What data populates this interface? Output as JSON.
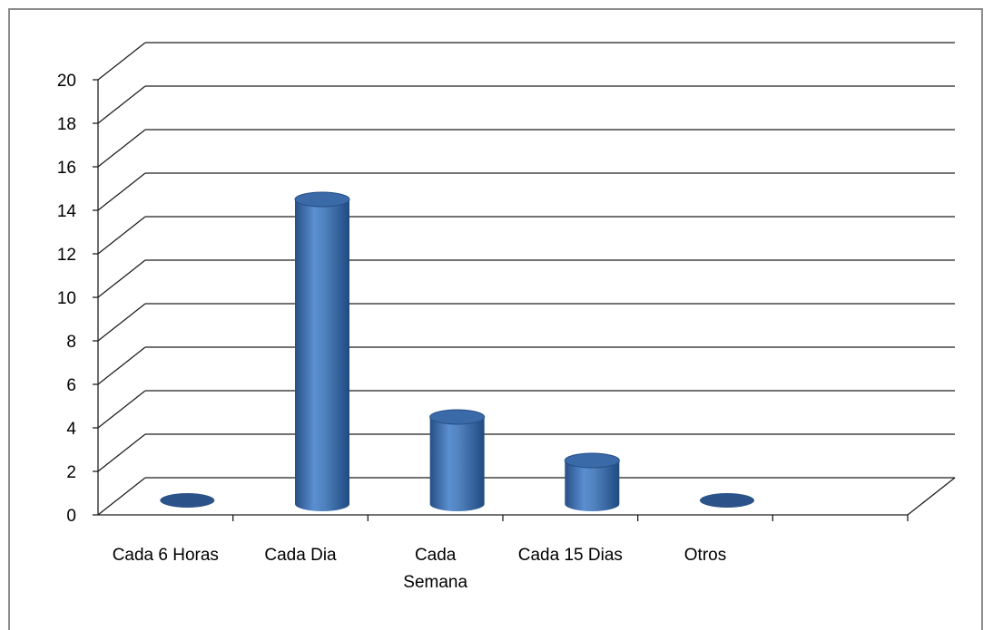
{
  "chart_data": {
    "type": "bar",
    "style": "3d-cylinder",
    "categories": [
      [
        "Cada 6 Horas"
      ],
      [
        "Cada Dia"
      ],
      [
        "Cada",
        "Semana"
      ],
      [
        "Cada 15 Dias"
      ],
      [
        "Otros"
      ]
    ],
    "values": [
      0,
      14,
      4,
      2,
      0
    ],
    "yticks": [
      "0",
      "2",
      "4",
      "6",
      "8",
      "10",
      "12",
      "14",
      "16",
      "18",
      "20"
    ],
    "ylim": [
      0,
      20
    ],
    "grid": true,
    "legend": "none",
    "colors": {
      "bar": "#4f81bd",
      "bar_dark": "#2b5389",
      "bar_top": "#3a6aa8",
      "grid": "#1f1f1f",
      "border": "#8c8c8c"
    }
  }
}
